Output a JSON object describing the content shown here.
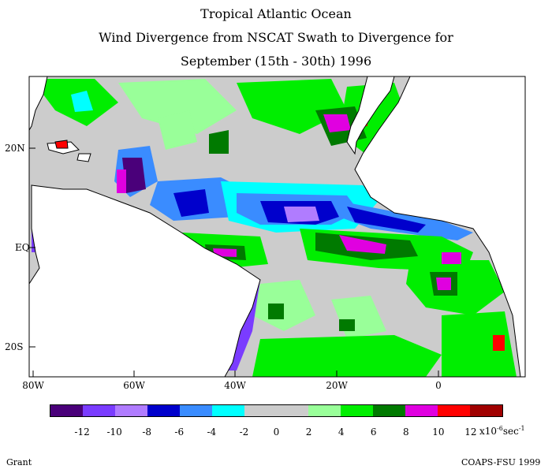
{
  "title": {
    "line1": "Tropical Atlantic Ocean",
    "line2": "Wind Divergence from NSCAT Swath to Divergence for",
    "line3": "September (15th - 30th) 1996"
  },
  "latitude_labels": [
    "20N",
    "EQ",
    "20S"
  ],
  "longitude_labels": [
    "80W",
    "60W",
    "40W",
    "20W",
    "0"
  ],
  "legend": {
    "colors": [
      "#4a007a",
      "#7a3cff",
      "#b07cff",
      "#0000cc",
      "#3a8cff",
      "#00ffff",
      "#cccccc",
      "#cccccc",
      "#99ff99",
      "#00ee00",
      "#007a00",
      "#e000e0",
      "#ff0000",
      "#a00000"
    ],
    "ticks": [
      "-12",
      "-10",
      "-8",
      "-6",
      "-4",
      "-2",
      "0",
      "2",
      "4",
      "6",
      "8",
      "10",
      "12"
    ],
    "unit_base": "x10",
    "unit_exp": "-6",
    "unit_tail": "sec",
    "unit_tail_exp": "-1"
  },
  "footer": {
    "left": "Grant",
    "right": "COAPS-FSU 1999"
  }
}
